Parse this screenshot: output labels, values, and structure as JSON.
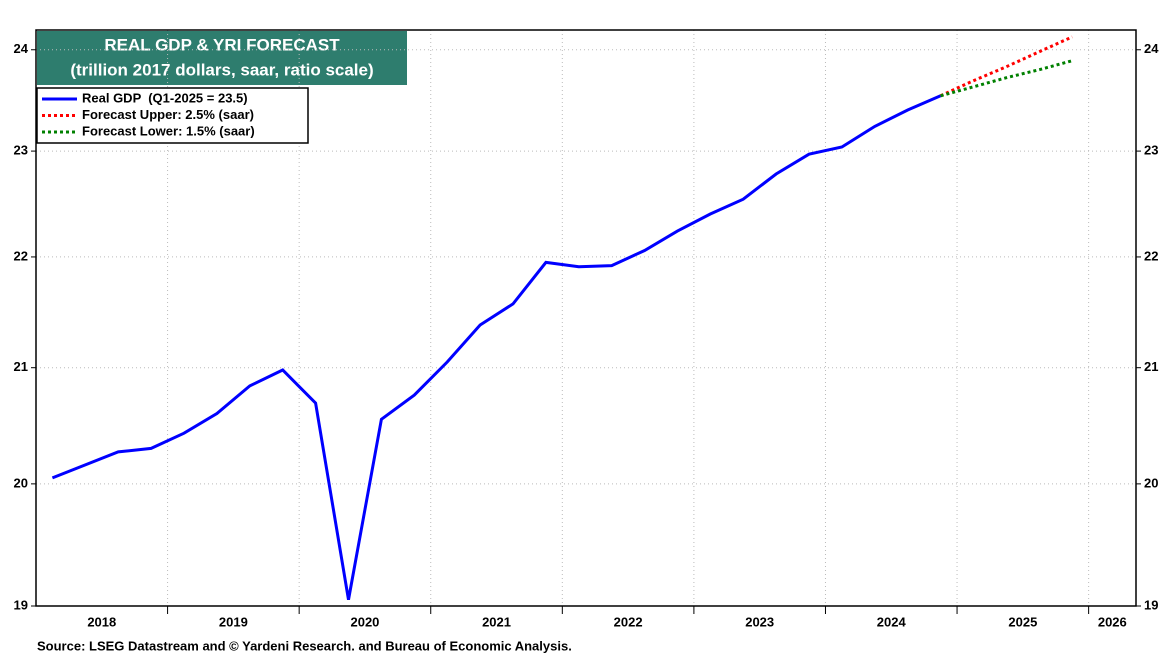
{
  "chart_data": {
    "type": "line",
    "title": "REAL GDP & YRI FORECAST",
    "subtitle": "(trillion 2017 dollars, saar, ratio scale)",
    "source": "Source: LSEG Datastream and © Yardeni Research. and Bureau of Economic Analysis.",
    "log_scale": true,
    "grid": true,
    "legend_position": "upper-left",
    "x": [
      2018.125,
      2018.375,
      2018.625,
      2018.875,
      2019.125,
      2019.375,
      2019.625,
      2019.875,
      2020.125,
      2020.375,
      2020.625,
      2020.875,
      2021.125,
      2021.375,
      2021.625,
      2021.875,
      2022.125,
      2022.375,
      2022.625,
      2022.875,
      2023.125,
      2023.375,
      2023.625,
      2023.875,
      2024.125,
      2024.375,
      2024.625,
      2024.875,
      2025.125,
      2025.375,
      2025.625,
      2025.875
    ],
    "xlim": [
      2018,
      2026.36
    ],
    "xticks": [
      2018,
      2019,
      2020,
      2021,
      2022,
      2023,
      2024,
      2025,
      2026
    ],
    "ylim": [
      19,
      24.2
    ],
    "yticks": [
      19,
      20,
      21,
      22,
      23,
      24
    ],
    "series": [
      {
        "name": "Real GDP  (Q1-2025 = 23.5)",
        "color": "#0000ff",
        "style": "solid",
        "values": [
          20.05,
          20.16,
          20.27,
          20.3,
          20.43,
          20.6,
          20.84,
          20.98,
          20.69,
          19.05,
          20.55,
          20.76,
          21.05,
          21.38,
          21.57,
          21.95,
          21.91,
          21.92,
          22.06,
          22.24,
          22.4,
          22.54,
          22.78,
          22.97,
          23.04,
          23.24,
          23.4,
          23.54,
          null,
          null,
          null,
          null
        ]
      },
      {
        "name": "Forecast Upper: 2.5% (saar)",
        "color": "#ff0000",
        "style": "dotted",
        "values": [
          null,
          null,
          null,
          null,
          null,
          null,
          null,
          null,
          null,
          null,
          null,
          null,
          null,
          null,
          null,
          null,
          null,
          null,
          null,
          null,
          null,
          null,
          null,
          null,
          null,
          null,
          null,
          23.54,
          23.69,
          23.83,
          23.98,
          24.13
        ]
      },
      {
        "name": "Forecast Lower: 1.5% (saar)",
        "color": "#008000",
        "style": "dotted",
        "values": [
          null,
          null,
          null,
          null,
          null,
          null,
          null,
          null,
          null,
          null,
          null,
          null,
          null,
          null,
          null,
          null,
          null,
          null,
          null,
          null,
          null,
          null,
          null,
          null,
          null,
          null,
          null,
          23.54,
          23.63,
          23.72,
          23.8,
          23.89
        ]
      }
    ]
  }
}
